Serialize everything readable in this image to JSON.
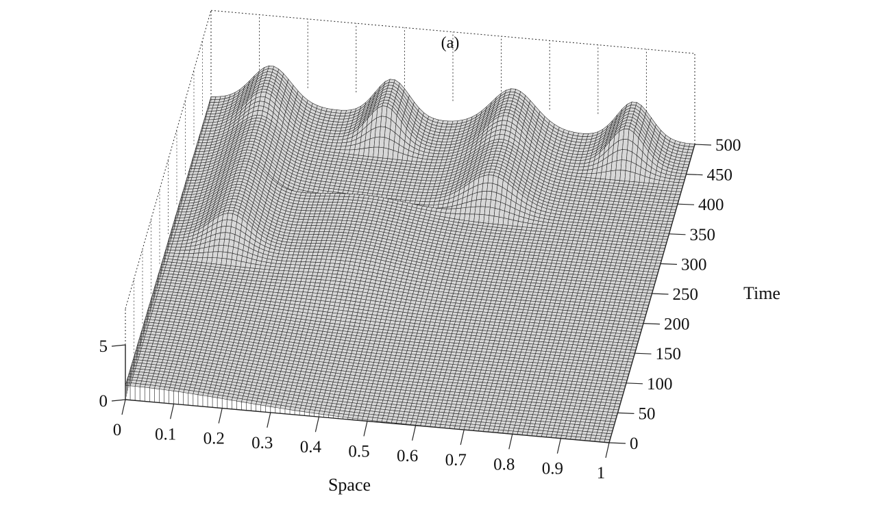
{
  "chart_data": {
    "type": "surface",
    "title": "(a)",
    "xlabel": "Space",
    "ylabel": "Time",
    "zlabel": "",
    "xlim": [
      0,
      1
    ],
    "ylim": [
      0,
      500
    ],
    "zlim": [
      0,
      5
    ],
    "x_ticks": [
      "0",
      "0.1",
      "0.2",
      "0.3",
      "0.4",
      "0.5",
      "0.6",
      "0.7",
      "0.8",
      "0.9",
      "1"
    ],
    "y_ticks": [
      "0",
      "50",
      "100",
      "150",
      "200",
      "250",
      "300",
      "350",
      "400",
      "450",
      "500"
    ],
    "z_ticks": [
      "0",
      "5"
    ],
    "grid": true,
    "surface_style": "mesh",
    "mesh_color": "#1a1a1a",
    "face_color": "#d8d8d8",
    "box_color": "#222222",
    "profiles": [
      {
        "time": 0,
        "description_values": [
          [
            0,
            1.2
          ],
          [
            0.25,
            0.9
          ],
          [
            0.5,
            0.1
          ],
          [
            0.75,
            0.0
          ],
          [
            1,
            0.0
          ]
        ]
      },
      {
        "time": 200,
        "peak_positions": [
          0.12
        ],
        "peak_height": 2.5
      },
      {
        "time": 350,
        "peak_positions": [
          0.12,
          0.62
        ],
        "peak_height": 3.0
      },
      {
        "time": 500,
        "peak_positions": [
          0.125,
          0.375,
          0.625,
          0.875
        ],
        "peak_height": 4.5
      }
    ]
  }
}
